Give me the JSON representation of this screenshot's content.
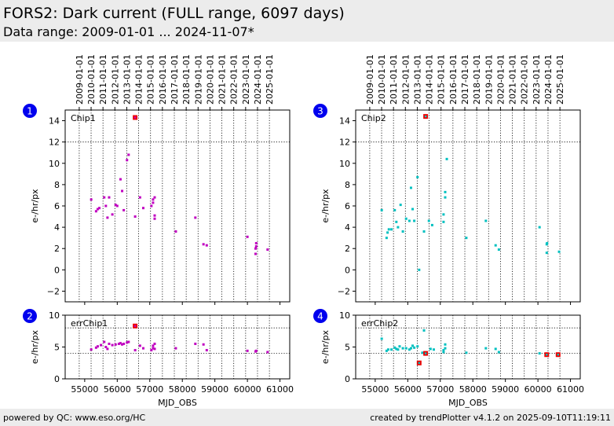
{
  "header": {
    "title": "FORS2: Dark current (FULL range, 6097 days)",
    "subtitle": "Data range: 2009-01-01 ... 2024-11-07*"
  },
  "footer": {
    "left": "powered by QC: www.eso.org/HC",
    "right": "created by trendPlotter v4.1.2 on 2025-09-10T11:19:11"
  },
  "colors": {
    "chip1": "#c000c0",
    "chip2": "#00c0c0",
    "outlier": "#ee0000",
    "marker_bg": "#0000ee",
    "header_bg": "#ececec"
  },
  "chart_data": [
    {
      "id": 1,
      "type": "scatter",
      "marker_label": "1",
      "label": "Chip1",
      "xlabel": "",
      "ylabel": "e-/hr/px",
      "xlim": [
        54400,
        61300
      ],
      "ylim": [
        -3,
        15
      ],
      "yticks": [
        -2,
        0,
        2,
        4,
        6,
        8,
        10,
        12,
        14
      ],
      "threshold_lines": [
        12
      ],
      "top_date_labels": [
        "2009-01-01",
        "2010-01-01",
        "2011-01-01",
        "2012-01-01",
        "2013-01-01",
        "2014-01-01",
        "2015-01-01",
        "2016-01-01",
        "2017-01-01",
        "2018-01-01",
        "2019-01-01",
        "2020-01-01",
        "2021-01-01",
        "2022-01-01",
        "2023-01-01",
        "2024-01-01",
        "2025-01-01"
      ],
      "points": [
        [
          55200,
          6.6
        ],
        [
          55350,
          5.5
        ],
        [
          55400,
          5.7
        ],
        [
          55450,
          5.8
        ],
        [
          55600,
          6.8
        ],
        [
          55650,
          6.0
        ],
        [
          55700,
          4.9
        ],
        [
          55750,
          6.8
        ],
        [
          55850,
          5.2
        ],
        [
          55950,
          6.1
        ],
        [
          56000,
          6.0
        ],
        [
          56100,
          8.5
        ],
        [
          56150,
          7.4
        ],
        [
          56200,
          5.6
        ],
        [
          56300,
          10.3
        ],
        [
          56350,
          10.8
        ],
        [
          56550,
          5.0
        ],
        [
          56700,
          6.8
        ],
        [
          56800,
          5.8
        ],
        [
          57050,
          6.0
        ],
        [
          57100,
          6.3
        ],
        [
          57100,
          6.6
        ],
        [
          57150,
          5.1
        ],
        [
          57150,
          4.8
        ],
        [
          57150,
          6.8
        ],
        [
          57800,
          3.6
        ],
        [
          58400,
          4.9
        ],
        [
          58650,
          2.4
        ],
        [
          58750,
          2.3
        ],
        [
          60000,
          3.1
        ],
        [
          60250,
          1.5
        ],
        [
          60250,
          2.0
        ],
        [
          60270,
          2.2
        ],
        [
          60270,
          2.5
        ],
        [
          60620,
          1.9
        ]
      ],
      "outliers": [
        [
          56550,
          14.3
        ]
      ]
    },
    {
      "id": 2,
      "type": "scatter",
      "marker_label": "2",
      "label": "errChip1",
      "xlabel": "MJD_OBS",
      "ylabel": "e-/hr/px",
      "xlim": [
        54400,
        61300
      ],
      "ylim": [
        0,
        10
      ],
      "yticks": [
        0,
        5,
        10
      ],
      "threshold_lines": [
        8,
        4
      ],
      "xticks": [
        55000,
        56000,
        57000,
        58000,
        59000,
        60000,
        61000
      ],
      "xtick_labels": [
        "55000",
        "56000",
        "57000",
        "58000",
        "59000",
        "60000",
        "61000"
      ],
      "points": [
        [
          55200,
          4.6
        ],
        [
          55350,
          4.9
        ],
        [
          55400,
          5.1
        ],
        [
          55500,
          5.3
        ],
        [
          55600,
          5.8
        ],
        [
          55650,
          5.0
        ],
        [
          55700,
          4.7
        ],
        [
          55750,
          5.5
        ],
        [
          55850,
          5.3
        ],
        [
          55950,
          5.4
        ],
        [
          56050,
          5.5
        ],
        [
          56100,
          5.6
        ],
        [
          56150,
          5.4
        ],
        [
          56200,
          5.5
        ],
        [
          56300,
          5.7
        ],
        [
          56350,
          5.8
        ],
        [
          56550,
          4.5
        ],
        [
          56700,
          5.2
        ],
        [
          56800,
          4.8
        ],
        [
          57050,
          4.5
        ],
        [
          57100,
          4.8
        ],
        [
          57100,
          5.2
        ],
        [
          57150,
          4.7
        ],
        [
          57150,
          5.5
        ],
        [
          57800,
          4.8
        ],
        [
          58400,
          5.5
        ],
        [
          58650,
          5.4
        ],
        [
          58750,
          4.5
        ],
        [
          60000,
          4.4
        ],
        [
          60250,
          4.3
        ],
        [
          60270,
          4.4
        ],
        [
          60620,
          4.2
        ]
      ],
      "outliers": [
        [
          56550,
          8.3
        ]
      ]
    },
    {
      "id": 3,
      "type": "scatter",
      "marker_label": "3",
      "label": "Chip2",
      "xlabel": "",
      "ylabel": "e-/hr/px",
      "xlim": [
        54400,
        61300
      ],
      "ylim": [
        -3,
        15
      ],
      "yticks": [
        -2,
        0,
        2,
        4,
        6,
        8,
        10,
        12,
        14
      ],
      "threshold_lines": [
        12
      ],
      "top_date_labels": [
        "2009-01-01",
        "2010-01-01",
        "2011-01-01",
        "2012-01-01",
        "2013-01-01",
        "2014-01-01",
        "2015-01-01",
        "2016-01-01",
        "2017-01-01",
        "2018-01-01",
        "2019-01-01",
        "2020-01-01",
        "2021-01-01",
        "2022-01-01",
        "2023-01-01",
        "2024-01-01",
        "2025-01-01"
      ],
      "points": [
        [
          55200,
          5.6
        ],
        [
          55350,
          3.0
        ],
        [
          55380,
          3.5
        ],
        [
          55420,
          3.8
        ],
        [
          55500,
          3.8
        ],
        [
          55600,
          5.6
        ],
        [
          55650,
          4.5
        ],
        [
          55700,
          4.0
        ],
        [
          55780,
          6.1
        ],
        [
          55850,
          3.6
        ],
        [
          55950,
          4.8
        ],
        [
          56050,
          4.6
        ],
        [
          56100,
          7.7
        ],
        [
          56150,
          5.7
        ],
        [
          56200,
          4.6
        ],
        [
          56300,
          8.7
        ],
        [
          56350,
          0.0
        ],
        [
          56500,
          3.6
        ],
        [
          56650,
          4.6
        ],
        [
          56750,
          4.2
        ],
        [
          57100,
          5.2
        ],
        [
          57100,
          4.5
        ],
        [
          57150,
          6.8
        ],
        [
          57150,
          7.3
        ],
        [
          57200,
          10.4
        ],
        [
          57800,
          3.0
        ],
        [
          58400,
          4.6
        ],
        [
          58700,
          2.3
        ],
        [
          58800,
          1.9
        ],
        [
          60050,
          4.0
        ],
        [
          60270,
          1.6
        ],
        [
          60270,
          2.4
        ],
        [
          60280,
          2.5
        ],
        [
          60650,
          1.7
        ]
      ],
      "outliers": [
        [
          56550,
          14.4
        ]
      ]
    },
    {
      "id": 4,
      "type": "scatter",
      "marker_label": "4",
      "label": "errChip2",
      "xlabel": "MJD_OBS",
      "ylabel": "e-/hr/px",
      "xlim": [
        54400,
        61300
      ],
      "ylim": [
        0,
        10
      ],
      "yticks": [
        0,
        5,
        10
      ],
      "threshold_lines": [
        8,
        4
      ],
      "xticks": [
        55000,
        56000,
        57000,
        58000,
        59000,
        60000,
        61000
      ],
      "xtick_labels": [
        "55000",
        "56000",
        "57000",
        "58000",
        "59000",
        "60000",
        "61000"
      ],
      "points": [
        [
          55200,
          6.3
        ],
        [
          55350,
          4.4
        ],
        [
          55400,
          4.6
        ],
        [
          55500,
          4.6
        ],
        [
          55600,
          4.9
        ],
        [
          55650,
          4.7
        ],
        [
          55700,
          4.6
        ],
        [
          55750,
          5.1
        ],
        [
          55850,
          4.8
        ],
        [
          55950,
          4.8
        ],
        [
          56050,
          4.6
        ],
        [
          56100,
          4.8
        ],
        [
          56150,
          5.2
        ],
        [
          56200,
          4.9
        ],
        [
          56300,
          5.1
        ],
        [
          56450,
          4.1
        ],
        [
          56500,
          7.6
        ],
        [
          56700,
          4.7
        ],
        [
          56800,
          4.6
        ],
        [
          57100,
          4.2
        ],
        [
          57100,
          4.5
        ],
        [
          57150,
          4.8
        ],
        [
          57150,
          5.4
        ],
        [
          57800,
          4.1
        ],
        [
          58400,
          4.8
        ],
        [
          58700,
          4.7
        ],
        [
          58800,
          4.2
        ],
        [
          60050,
          4.0
        ]
      ],
      "outliers": [
        [
          56350,
          2.5
        ],
        [
          56550,
          4.0
        ],
        [
          60270,
          3.8
        ],
        [
          60620,
          3.8
        ]
      ]
    }
  ]
}
